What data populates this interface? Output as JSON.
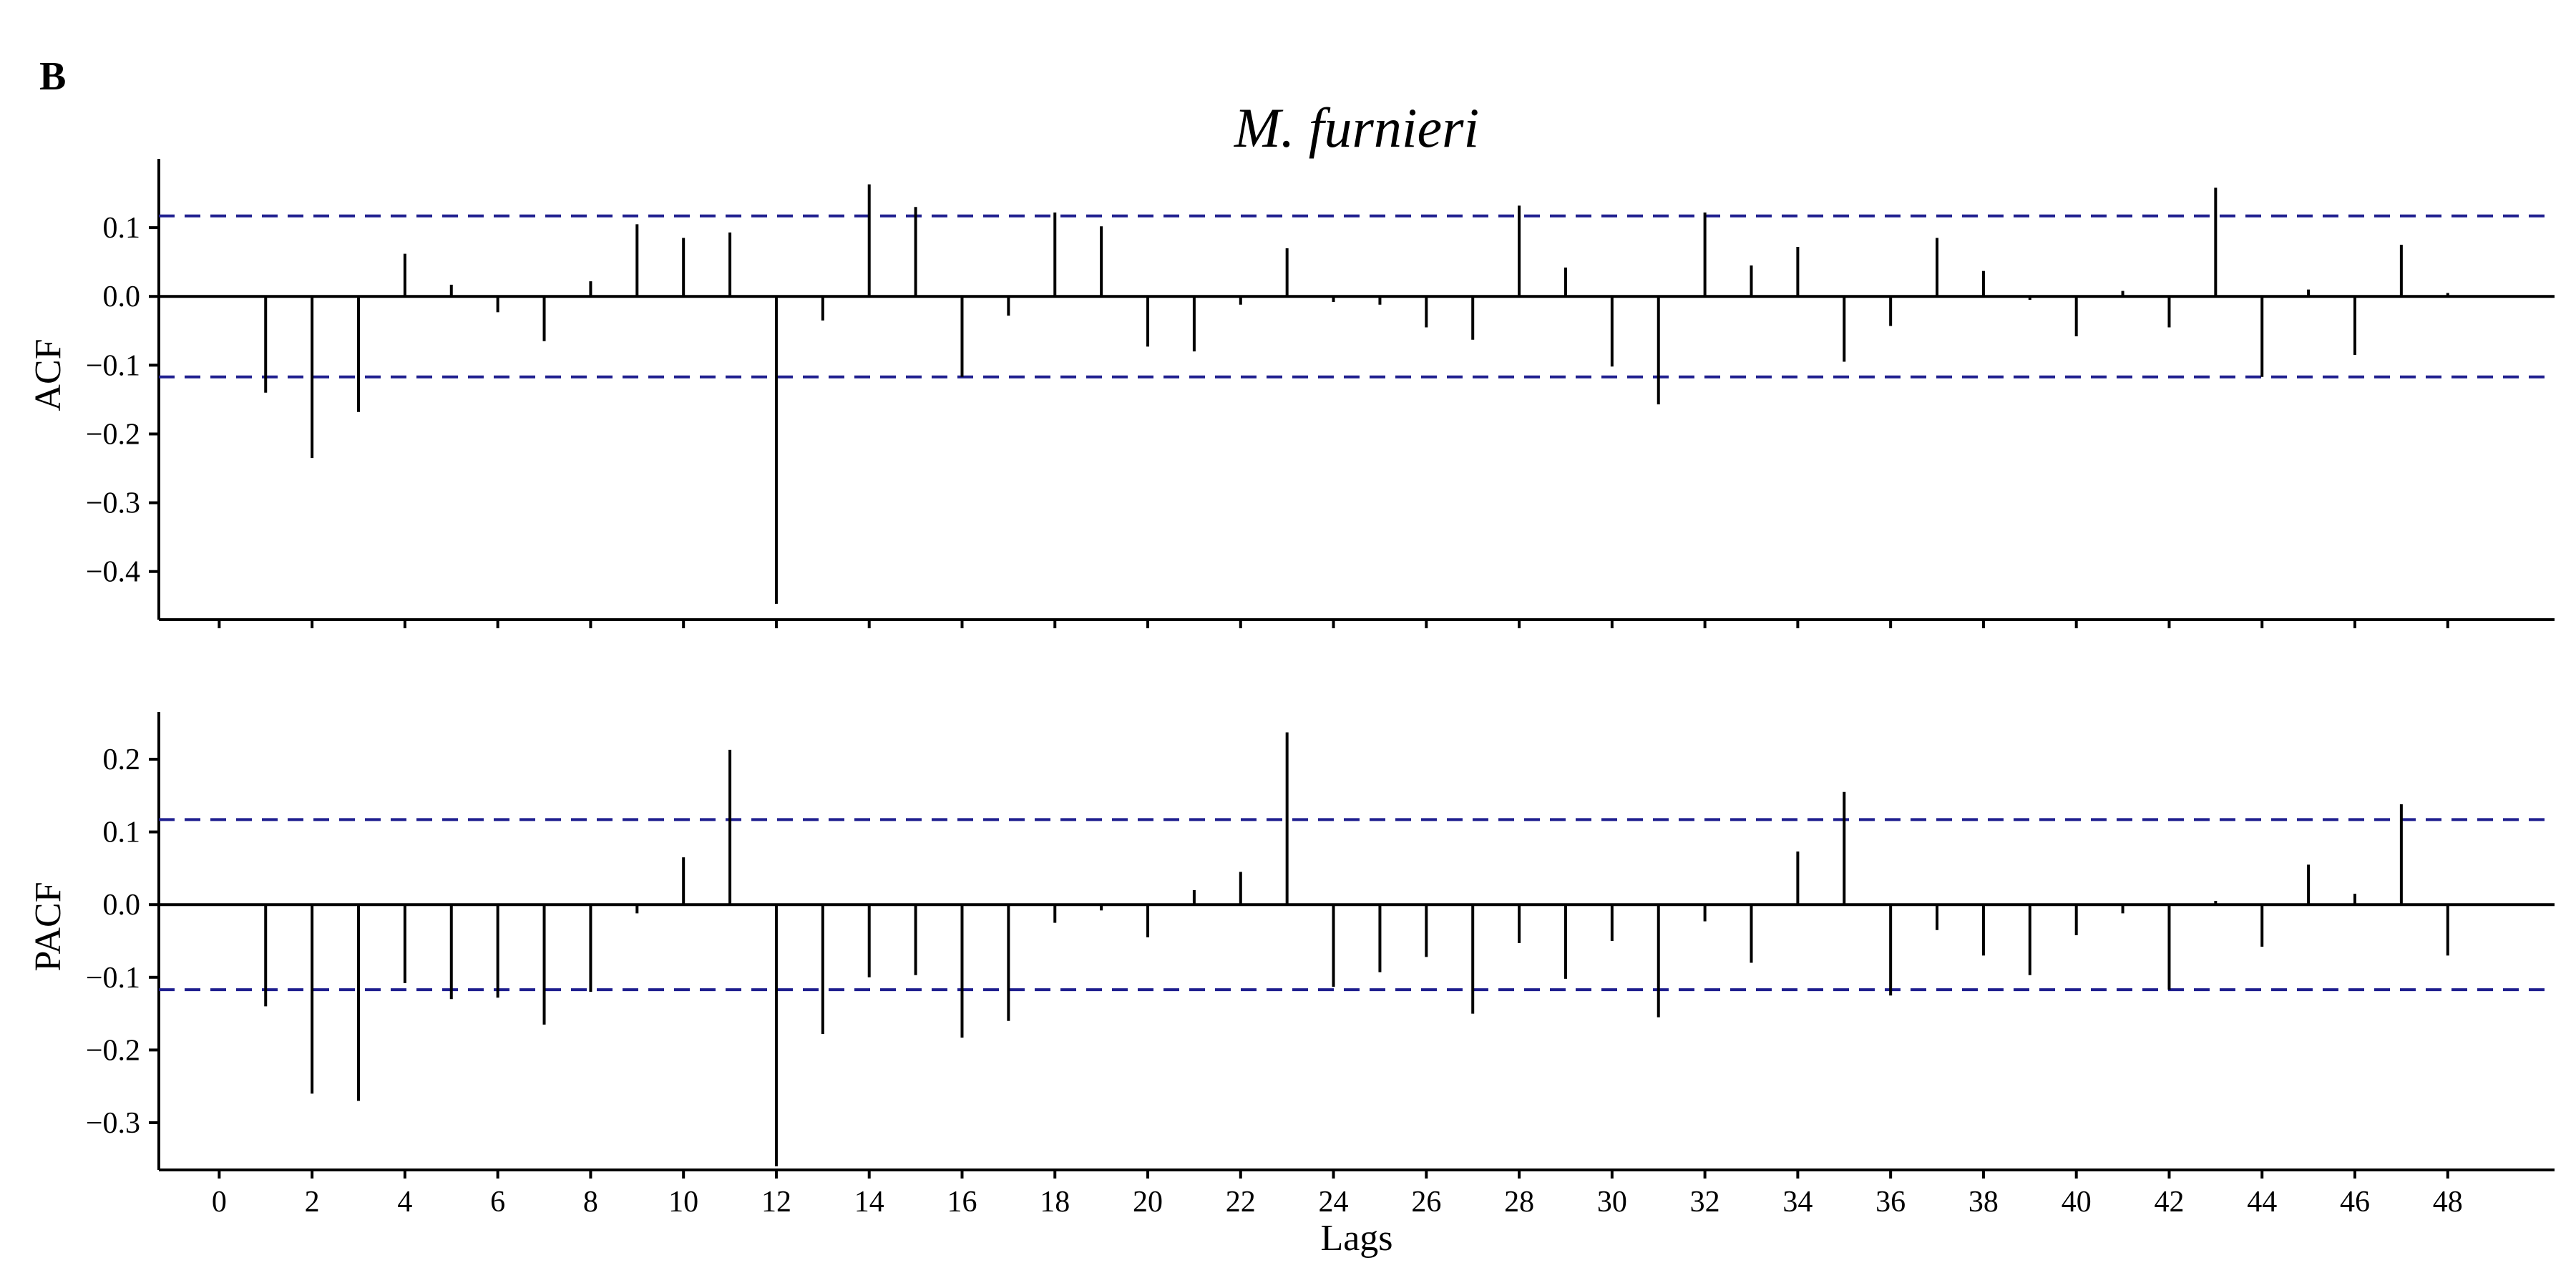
{
  "panel_label": "B",
  "chart_data": [
    {
      "type": "bar",
      "title": "M. furnieri",
      "ylabel": "ACF",
      "xlabel": "",
      "confidence_bound": 0.117,
      "ylim": [
        -0.47,
        0.2
      ],
      "yticks": [
        0.1,
        0.0,
        -0.1,
        -0.2,
        -0.3,
        -0.4
      ],
      "ytick_labels": [
        "0.1",
        "0.0",
        "−0.1",
        "−0.2",
        "−0.3",
        "−0.4"
      ],
      "lags": [
        1,
        2,
        3,
        4,
        5,
        6,
        7,
        8,
        9,
        10,
        11,
        12,
        13,
        14,
        15,
        16,
        17,
        18,
        19,
        20,
        21,
        22,
        23,
        24,
        25,
        26,
        27,
        28,
        29,
        30,
        31,
        32,
        33,
        34,
        35,
        36,
        37,
        38,
        39,
        40,
        41,
        42,
        43,
        44,
        45,
        46,
        47,
        48
      ],
      "values": [
        -0.14,
        -0.235,
        -0.168,
        0.062,
        0.017,
        -0.023,
        -0.065,
        0.022,
        0.105,
        0.085,
        0.093,
        -0.447,
        -0.035,
        0.163,
        0.13,
        -0.117,
        -0.028,
        0.122,
        0.102,
        -0.073,
        -0.08,
        -0.012,
        0.07,
        -0.008,
        -0.012,
        -0.045,
        -0.063,
        0.132,
        0.042,
        -0.102,
        -0.157,
        0.122,
        0.045,
        0.072,
        -0.095,
        -0.043,
        0.085,
        0.037,
        -0.005,
        -0.058,
        0.008,
        -0.045,
        0.158,
        -0.117,
        0.01,
        -0.085,
        0.075,
        0.005
      ],
      "grid": false,
      "legend": "none"
    },
    {
      "type": "bar",
      "title": "",
      "ylabel": "PACF",
      "xlabel": "Lags",
      "confidence_bound": 0.117,
      "ylim": [
        -0.365,
        0.265
      ],
      "yticks": [
        0.2,
        0.1,
        0.0,
        -0.1,
        -0.2,
        -0.3
      ],
      "ytick_labels": [
        "0.2",
        "0.1",
        "0.0",
        "−0.1",
        "−0.2",
        "−0.3"
      ],
      "xlim": [
        -1.3,
        50.3
      ],
      "xticks": [
        0,
        2,
        4,
        6,
        8,
        10,
        12,
        14,
        16,
        18,
        20,
        22,
        24,
        26,
        28,
        30,
        32,
        34,
        36,
        38,
        40,
        42,
        44,
        46,
        48
      ],
      "xtick_labels": [
        "0",
        "2",
        "4",
        "6",
        "8",
        "10",
        "12",
        "14",
        "16",
        "18",
        "20",
        "22",
        "24",
        "26",
        "28",
        "30",
        "32",
        "34",
        "36",
        "38",
        "40",
        "42",
        "44",
        "46",
        "48"
      ],
      "lags": [
        1,
        2,
        3,
        4,
        5,
        6,
        7,
        8,
        9,
        10,
        11,
        12,
        13,
        14,
        15,
        16,
        17,
        18,
        19,
        20,
        21,
        22,
        23,
        24,
        25,
        26,
        27,
        28,
        29,
        30,
        31,
        32,
        33,
        34,
        35,
        36,
        37,
        38,
        39,
        40,
        41,
        42,
        43,
        44,
        45,
        46,
        47,
        48
      ],
      "values": [
        -0.14,
        -0.26,
        -0.27,
        -0.108,
        -0.13,
        -0.128,
        -0.165,
        -0.12,
        -0.012,
        0.065,
        0.213,
        -0.36,
        -0.178,
        -0.1,
        -0.097,
        -0.183,
        -0.16,
        -0.025,
        -0.008,
        -0.045,
        0.02,
        0.045,
        0.237,
        -0.113,
        -0.093,
        -0.072,
        -0.15,
        -0.053,
        -0.102,
        -0.05,
        -0.155,
        -0.023,
        -0.08,
        0.073,
        0.155,
        -0.125,
        -0.035,
        -0.07,
        -0.097,
        -0.042,
        -0.012,
        -0.117,
        0.005,
        -0.058,
        0.055,
        0.015,
        0.138,
        -0.07
      ],
      "grid": false,
      "legend": "none"
    }
  ]
}
